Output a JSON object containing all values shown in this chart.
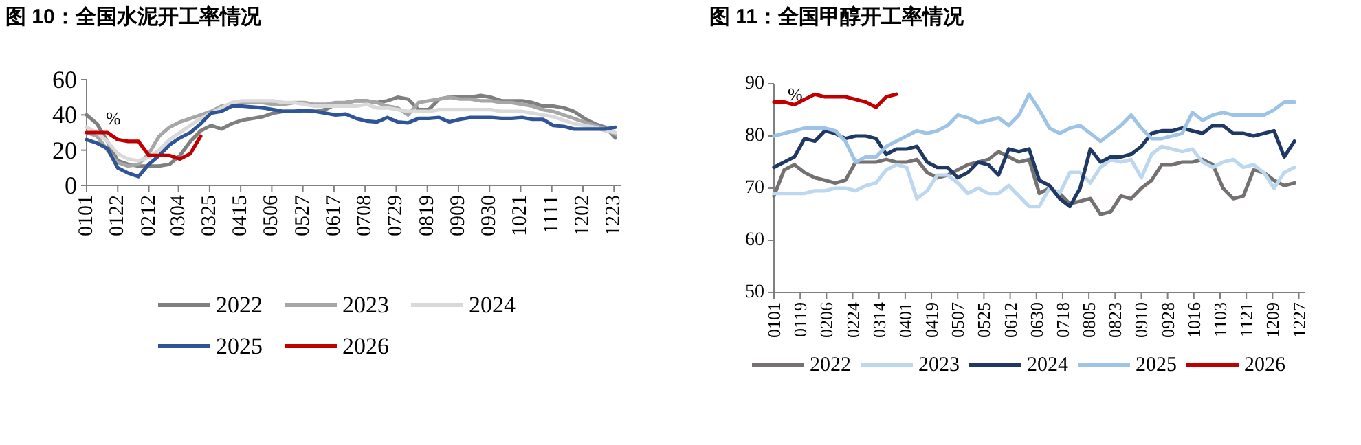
{
  "chart_data": [
    {
      "type": "line",
      "title": "图 10：全国水泥开工率情况",
      "annotations": [
        "%"
      ],
      "legend": "bottom",
      "ylim": [
        0,
        60
      ],
      "yticks": [
        0,
        20,
        40,
        60
      ],
      "xlim": [
        "--01-01",
        "--12-28"
      ],
      "xticks": [
        {
          "value": "--01-01",
          "label": "0101"
        },
        {
          "value": "--01-22",
          "label": "0122"
        },
        {
          "value": "--02-12",
          "label": "0212"
        },
        {
          "value": "--03-04",
          "label": "0304"
        },
        {
          "value": "--03-25",
          "label": "0325"
        },
        {
          "value": "--04-15",
          "label": "0415"
        },
        {
          "value": "--05-06",
          "label": "0506"
        },
        {
          "value": "--05-27",
          "label": "0527"
        },
        {
          "value": "--06-17",
          "label": "0617"
        },
        {
          "value": "--07-08",
          "label": "0708"
        },
        {
          "value": "--07-29",
          "label": "0729"
        },
        {
          "value": "--08-19",
          "label": "0819"
        },
        {
          "value": "--09-09",
          "label": "0909"
        },
        {
          "value": "--09-30",
          "label": "0930"
        },
        {
          "value": "--10-21",
          "label": "1021"
        },
        {
          "value": "--11-11",
          "label": "1111"
        },
        {
          "value": "--12-02",
          "label": "1202"
        },
        {
          "value": "--12-23",
          "label": "1223"
        }
      ],
      "x": [
        "--01-01",
        "--01-08",
        "--01-15",
        "--01-22",
        "--01-29",
        "--02-05",
        "--02-12",
        "--02-19",
        "--02-26",
        "--03-05",
        "--03-12",
        "--03-19",
        "--03-26",
        "--04-02",
        "--04-09",
        "--04-16",
        "--04-23",
        "--04-30",
        "--05-07",
        "--05-14",
        "--05-21",
        "--05-28",
        "--06-04",
        "--06-11",
        "--06-18",
        "--06-25",
        "--07-02",
        "--07-09",
        "--07-16",
        "--07-23",
        "--07-30",
        "--08-06",
        "--08-13",
        "--08-20",
        "--08-27",
        "--09-03",
        "--09-10",
        "--09-17",
        "--09-24",
        "--10-01",
        "--10-08",
        "--10-15",
        "--10-22",
        "--10-29",
        "--11-05",
        "--11-12",
        "--11-19",
        "--11-26",
        "--12-03",
        "--12-10",
        "--12-17",
        "--12-24"
      ],
      "series": [
        {
          "name": "2022",
          "color": "#7f7f7f",
          "values": [
            40,
            35,
            25,
            14,
            12,
            11,
            11,
            11,
            12,
            17,
            25,
            31,
            34,
            32,
            35,
            37,
            38,
            39,
            41,
            42,
            42,
            42,
            42,
            43,
            46,
            47,
            48,
            48,
            47,
            48,
            50,
            49,
            43,
            43,
            49,
            50,
            50,
            50,
            51,
            50,
            48,
            48,
            48,
            47,
            45,
            45,
            44,
            42,
            38,
            35,
            33,
            27
          ]
        },
        {
          "name": "2023",
          "color": "#a6a6a6",
          "values": [
            30,
            28,
            20,
            13,
            11,
            12,
            18,
            28,
            33,
            36,
            38,
            40,
            42,
            45,
            46,
            47,
            47,
            47,
            46,
            46,
            47,
            47,
            46,
            46,
            47,
            47,
            48,
            48,
            47,
            45,
            44,
            40,
            47,
            48,
            49,
            50,
            49,
            49,
            48,
            48,
            47,
            47,
            46,
            45,
            43,
            42,
            40,
            38,
            36,
            34,
            32,
            29
          ]
        },
        {
          "name": "2024",
          "color": "#d9d9d9",
          "values": [
            33,
            30,
            25,
            18,
            15,
            14,
            16,
            20,
            26,
            30,
            34,
            38,
            41,
            44,
            47,
            48,
            48,
            48,
            48,
            47,
            47,
            46,
            45,
            45,
            45,
            45,
            45,
            46,
            44,
            44,
            43,
            42,
            42,
            42,
            43,
            43,
            43,
            43,
            43,
            43,
            42,
            42,
            42,
            41,
            40,
            39,
            37,
            35,
            34,
            33,
            31,
            30
          ]
        },
        {
          "name": "2025",
          "color": "#2f5597",
          "values": [
            26,
            24,
            21,
            10,
            7,
            5,
            12,
            17,
            23,
            27,
            30,
            35,
            41,
            42,
            45,
            45,
            44.5,
            44,
            43,
            42,
            42,
            42.5,
            42,
            41,
            40,
            40.5,
            38,
            36.5,
            36,
            38.5,
            36,
            35.5,
            38,
            38,
            38.5,
            36,
            37.5,
            38.5,
            38.5,
            38.5,
            38,
            38,
            38.5,
            37.5,
            37.5,
            34,
            33.5,
            32,
            32,
            32,
            32,
            33
          ]
        },
        {
          "name": "2026",
          "color": "#c00000",
          "x": [
            "--01-01",
            "--01-08",
            "--01-15",
            "--01-22",
            "--01-29",
            "--02-05",
            "--02-12",
            "--02-19",
            "--02-26",
            "--03-05",
            "--03-12",
            "--03-19"
          ],
          "values": [
            30,
            30,
            30,
            26,
            25,
            25,
            17,
            17,
            17,
            15,
            18,
            28
          ]
        }
      ]
    },
    {
      "type": "line",
      "title": "图 11：全国甲醇开工率情况",
      "annotations": [
        "%"
      ],
      "legend": "bottom",
      "ylim": [
        50,
        90
      ],
      "yticks": [
        50,
        60,
        70,
        80,
        90
      ],
      "xlim": [
        "--01-01",
        "--12-31"
      ],
      "xticks": [
        {
          "value": "--01-01",
          "label": "0101"
        },
        {
          "value": "--01-19",
          "label": "0119"
        },
        {
          "value": "--02-06",
          "label": "0206"
        },
        {
          "value": "--02-24",
          "label": "0224"
        },
        {
          "value": "--03-14",
          "label": "0314"
        },
        {
          "value": "--04-01",
          "label": "0401"
        },
        {
          "value": "--04-19",
          "label": "0419"
        },
        {
          "value": "--05-07",
          "label": "0507"
        },
        {
          "value": "--05-25",
          "label": "0525"
        },
        {
          "value": "--06-12",
          "label": "0612"
        },
        {
          "value": "--06-30",
          "label": "0630"
        },
        {
          "value": "--07-18",
          "label": "0718"
        },
        {
          "value": "--08-05",
          "label": "0805"
        },
        {
          "value": "--08-23",
          "label": "0823"
        },
        {
          "value": "--09-10",
          "label": "0910"
        },
        {
          "value": "--09-28",
          "label": "0928"
        },
        {
          "value": "--10-16",
          "label": "1016"
        },
        {
          "value": "--11-03",
          "label": "1103"
        },
        {
          "value": "--11-21",
          "label": "1121"
        },
        {
          "value": "--12-09",
          "label": "1209"
        },
        {
          "value": "--12-27",
          "label": "1227"
        }
      ],
      "x": [
        "--01-01",
        "--01-08",
        "--01-15",
        "--01-22",
        "--01-29",
        "--02-05",
        "--02-12",
        "--02-19",
        "--02-26",
        "--03-05",
        "--03-12",
        "--03-19",
        "--03-26",
        "--04-02",
        "--04-09",
        "--04-16",
        "--04-23",
        "--04-30",
        "--05-07",
        "--05-14",
        "--05-21",
        "--05-28",
        "--06-04",
        "--06-11",
        "--06-18",
        "--06-25",
        "--07-02",
        "--07-09",
        "--07-16",
        "--07-23",
        "--07-30",
        "--08-06",
        "--08-13",
        "--08-20",
        "--08-27",
        "--09-03",
        "--09-10",
        "--09-17",
        "--09-24",
        "--10-01",
        "--10-08",
        "--10-15",
        "--10-22",
        "--10-29",
        "--11-05",
        "--11-12",
        "--11-19",
        "--11-26",
        "--12-03",
        "--12-10",
        "--12-17",
        "--12-24"
      ],
      "series": [
        {
          "name": "2022",
          "color": "#767171",
          "values": [
            68.5,
            73.5,
            74.5,
            73,
            72,
            71.5,
            71,
            71.5,
            75,
            75,
            75,
            75.5,
            75,
            75,
            75.5,
            73,
            72,
            72.5,
            73.5,
            74.5,
            75,
            75.5,
            77,
            76,
            75,
            75.5,
            69,
            70,
            69,
            67,
            67.5,
            68,
            65,
            65.5,
            68.5,
            68,
            70,
            71.5,
            74.5,
            74.5,
            75,
            75,
            75.5,
            74.5,
            70,
            68,
            68.5,
            73.5,
            73,
            71.5,
            70.5,
            71
          ]
        },
        {
          "name": "2023",
          "color": "#bdd7ee",
          "values": [
            69,
            69,
            69,
            69,
            69.5,
            69.5,
            70,
            70,
            69.5,
            70.5,
            71,
            73.5,
            74.5,
            74,
            68,
            69.5,
            72.5,
            72.5,
            71,
            69,
            70,
            69,
            69,
            70.5,
            68.5,
            66.5,
            66.5,
            70,
            69,
            73,
            73,
            71,
            74,
            75.5,
            75,
            75.5,
            72,
            76.5,
            78,
            77.5,
            77,
            77.5,
            75,
            74,
            75,
            75.5,
            74,
            74.5,
            73,
            70,
            73,
            74
          ]
        },
        {
          "name": "2024",
          "color": "#1f3864",
          "values": [
            74,
            75,
            76,
            79.5,
            79,
            81,
            80.5,
            79.5,
            80,
            80,
            79.5,
            76.5,
            77.5,
            77.5,
            78,
            75,
            74,
            74,
            72,
            73,
            75,
            74.5,
            72.5,
            77.5,
            77,
            77.5,
            71.5,
            70.5,
            68,
            66.5,
            70,
            77.5,
            75,
            76,
            76,
            76.5,
            78,
            80.5,
            81,
            81,
            81.5,
            81,
            80.5,
            82,
            82,
            80.5,
            80.5,
            80,
            80.5,
            81,
            76,
            79
          ]
        },
        {
          "name": "2025",
          "color": "#9dc3e6",
          "values": [
            80,
            80.5,
            81,
            81.5,
            81.5,
            81.5,
            81,
            79,
            75,
            76,
            76,
            78,
            79,
            80,
            81,
            80.5,
            81,
            82,
            84,
            83.5,
            82.5,
            83,
            83.5,
            82,
            84,
            88,
            85,
            81.5,
            80.5,
            81.5,
            82,
            80.5,
            79,
            80.5,
            82,
            84,
            81.5,
            79.5,
            79.5,
            80,
            80.5,
            84.5,
            83,
            84,
            84.5,
            84,
            84,
            84,
            84,
            85,
            86.5,
            86.5
          ]
        },
        {
          "name": "2026",
          "color": "#c00000",
          "x": [
            "--01-01",
            "--01-08",
            "--01-15",
            "--01-22",
            "--01-29",
            "--02-05",
            "--02-12",
            "--02-19",
            "--02-26",
            "--03-05",
            "--03-12",
            "--03-19",
            "--03-26"
          ],
          "values": [
            86.5,
            86.5,
            86,
            87,
            88,
            87.5,
            87.5,
            87.5,
            87,
            86.5,
            85.5,
            87.5,
            88
          ]
        }
      ]
    }
  ]
}
